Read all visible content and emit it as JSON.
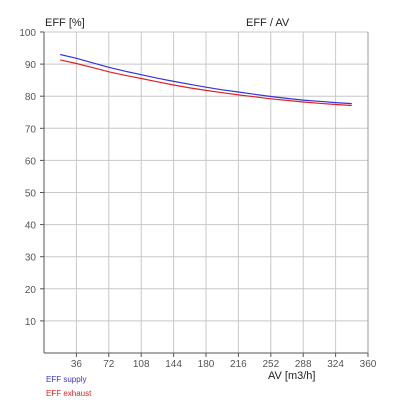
{
  "chart_data": {
    "type": "line",
    "title": "EFF / AV",
    "ylabel": "EFF [%]",
    "xlabel": "AV [m3/h]",
    "xlim": [
      0,
      360
    ],
    "ylim": [
      0,
      100
    ],
    "xticks": [
      "36",
      "72",
      "108",
      "144",
      "180",
      "216",
      "252",
      "288",
      "324",
      "360"
    ],
    "yticks": [
      "10",
      "20",
      "30",
      "40",
      "50",
      "60",
      "70",
      "80",
      "90",
      "100"
    ],
    "grid": true,
    "legend_position": "bottom-left",
    "series": [
      {
        "name": "EFF supply",
        "color": "#3333dd",
        "x": [
          18,
          36,
          54,
          72,
          90,
          108,
          126,
          144,
          162,
          180,
          198,
          216,
          234,
          252,
          270,
          288,
          306,
          324,
          342
        ],
        "y": [
          93.0,
          91.8,
          90.4,
          89.0,
          87.8,
          86.7,
          85.6,
          84.6,
          83.7,
          82.8,
          82.0,
          81.3,
          80.6,
          79.9,
          79.3,
          78.8,
          78.4,
          78.0,
          77.7
        ]
      },
      {
        "name": "EFF exhaust",
        "color": "#dd2222",
        "x": [
          18,
          36,
          54,
          72,
          90,
          108,
          126,
          144,
          162,
          180,
          198,
          216,
          234,
          252,
          270,
          288,
          306,
          324,
          342
        ],
        "y": [
          91.3,
          90.2,
          88.9,
          87.6,
          86.5,
          85.5,
          84.5,
          83.5,
          82.6,
          81.8,
          81.1,
          80.4,
          79.8,
          79.2,
          78.7,
          78.2,
          77.8,
          77.4,
          77.1
        ]
      }
    ]
  }
}
